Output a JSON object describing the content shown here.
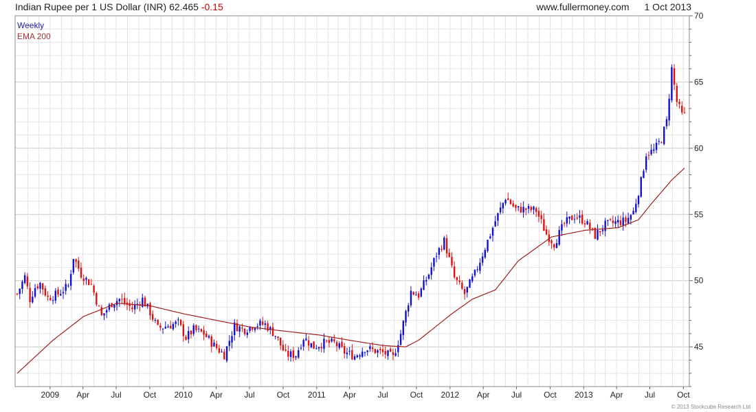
{
  "header": {
    "title": "Indian Rupee per 1 US Dollar (INR)",
    "last": "62.465",
    "change": "-0.15",
    "site": "www.fullermoney.com",
    "date": "1 Oct 2013"
  },
  "legend": {
    "weekly": "Weekly",
    "ema": "EMA 200"
  },
  "copyright": "© 2013 Stockcube Research Ltd",
  "colors": {
    "up": "#1010d0",
    "down": "#e01010",
    "ema": "#a02020",
    "grid": "#e3e3e3",
    "grid_major": "#c8c8c8",
    "frame": "#888888"
  },
  "chart_data": {
    "type": "candlestick",
    "period": "weekly",
    "y_axis_position": "right",
    "ylim": [
      42.0,
      70.0
    ],
    "y_ticks": [
      45,
      50,
      55,
      60,
      65,
      70
    ],
    "x_start": "2008-10-03",
    "x_end": "2013-10-04",
    "x_ticks": [
      {
        "label": "2009",
        "date": "2009-01-01"
      },
      {
        "label": "Apr",
        "date": "2009-04-01"
      },
      {
        "label": "Jul",
        "date": "2009-07-01"
      },
      {
        "label": "Oct",
        "date": "2009-10-01"
      },
      {
        "label": "2010",
        "date": "2010-01-01"
      },
      {
        "label": "Apr",
        "date": "2010-04-01"
      },
      {
        "label": "Jul",
        "date": "2010-07-01"
      },
      {
        "label": "Oct",
        "date": "2010-10-01"
      },
      {
        "label": "2011",
        "date": "2011-01-01"
      },
      {
        "label": "Apr",
        "date": "2011-04-01"
      },
      {
        "label": "Jul",
        "date": "2011-07-01"
      },
      {
        "label": "Oct",
        "date": "2011-10-01"
      },
      {
        "label": "2012",
        "date": "2012-01-01"
      },
      {
        "label": "Apr",
        "date": "2012-04-01"
      },
      {
        "label": "Jul",
        "date": "2012-07-01"
      },
      {
        "label": "Oct",
        "date": "2012-10-01"
      },
      {
        "label": "2013",
        "date": "2013-01-01"
      },
      {
        "label": "Apr",
        "date": "2013-04-01"
      },
      {
        "label": "Jul",
        "date": "2013-07-01"
      },
      {
        "label": "Oct",
        "date": "2013-10-01"
      }
    ],
    "weekly_close_anchors": [
      [
        "2008-10-03",
        49.0
      ],
      [
        "2008-10-24",
        50.3
      ],
      [
        "2008-11-07",
        48.6
      ],
      [
        "2008-11-21",
        49.5
      ],
      [
        "2008-12-05",
        49.8
      ],
      [
        "2008-12-26",
        48.7
      ],
      [
        "2009-01-23",
        49.0
      ],
      [
        "2009-02-20",
        49.6
      ],
      [
        "2009-03-06",
        51.8
      ],
      [
        "2009-03-27",
        50.5
      ],
      [
        "2009-04-24",
        49.7
      ],
      [
        "2009-05-22",
        47.3
      ],
      [
        "2009-06-19",
        48.3
      ],
      [
        "2009-07-10",
        48.6
      ],
      [
        "2009-08-14",
        47.9
      ],
      [
        "2009-09-11",
        48.6
      ],
      [
        "2009-10-02",
        47.6
      ],
      [
        "2009-10-23",
        46.4
      ],
      [
        "2009-11-20",
        46.6
      ],
      [
        "2009-12-18",
        46.8
      ],
      [
        "2010-01-08",
        45.7
      ],
      [
        "2010-01-29",
        46.3
      ],
      [
        "2010-02-26",
        46.0
      ],
      [
        "2010-03-26",
        45.1
      ],
      [
        "2010-04-23",
        44.4
      ],
      [
        "2010-05-21",
        46.6
      ],
      [
        "2010-06-18",
        46.3
      ],
      [
        "2010-07-16",
        46.7
      ],
      [
        "2010-08-13",
        46.7
      ],
      [
        "2010-09-10",
        45.9
      ],
      [
        "2010-10-08",
        44.4
      ],
      [
        "2010-11-05",
        44.4
      ],
      [
        "2010-11-26",
        45.7
      ],
      [
        "2010-12-24",
        45.0
      ],
      [
        "2011-01-21",
        45.3
      ],
      [
        "2011-02-18",
        45.3
      ],
      [
        "2011-03-18",
        44.6
      ],
      [
        "2011-04-15",
        44.3
      ],
      [
        "2011-05-13",
        44.9
      ],
      [
        "2011-06-10",
        44.7
      ],
      [
        "2011-07-08",
        44.5
      ],
      [
        "2011-07-29",
        44.2
      ],
      [
        "2011-08-19",
        46.0
      ],
      [
        "2011-09-16",
        49.2
      ],
      [
        "2011-10-07",
        48.9
      ],
      [
        "2011-11-04",
        50.5
      ],
      [
        "2011-11-25",
        52.0
      ],
      [
        "2011-12-16",
        53.0
      ],
      [
        "2012-01-13",
        50.2
      ],
      [
        "2012-02-10",
        49.0
      ],
      [
        "2012-03-09",
        50.5
      ],
      [
        "2012-04-06",
        52.5
      ],
      [
        "2012-05-04",
        54.5
      ],
      [
        "2012-06-01",
        56.3
      ],
      [
        "2012-06-29",
        55.4
      ],
      [
        "2012-07-27",
        55.4
      ],
      [
        "2012-08-24",
        55.3
      ],
      [
        "2012-09-21",
        53.5
      ],
      [
        "2012-10-12",
        52.8
      ],
      [
        "2012-11-09",
        54.3
      ],
      [
        "2012-12-07",
        54.9
      ],
      [
        "2013-01-04",
        54.5
      ],
      [
        "2013-02-01",
        53.4
      ],
      [
        "2013-03-01",
        54.2
      ],
      [
        "2013-03-29",
        54.4
      ],
      [
        "2013-04-26",
        54.5
      ],
      [
        "2013-05-17",
        55.2
      ],
      [
        "2013-06-07",
        57.5
      ],
      [
        "2013-06-21",
        59.6
      ],
      [
        "2013-07-12",
        59.8
      ],
      [
        "2013-08-02",
        60.7
      ],
      [
        "2013-08-16",
        62.0
      ],
      [
        "2013-08-30",
        66.0
      ],
      [
        "2013-09-13",
        63.5
      ],
      [
        "2013-09-27",
        62.5
      ],
      [
        "2013-10-04",
        62.5
      ]
    ],
    "ema_200_anchors": [
      [
        "2008-10-03",
        43.0
      ],
      [
        "2009-01-09",
        45.5
      ],
      [
        "2009-04-03",
        47.3
      ],
      [
        "2009-07-03",
        48.3
      ],
      [
        "2009-10-02",
        48.1
      ],
      [
        "2010-01-01",
        47.5
      ],
      [
        "2010-04-02",
        47.0
      ],
      [
        "2010-07-02",
        46.5
      ],
      [
        "2010-10-01",
        46.2
      ],
      [
        "2011-01-07",
        45.9
      ],
      [
        "2011-04-01",
        45.5
      ],
      [
        "2011-07-01",
        45.1
      ],
      [
        "2011-09-02",
        45.0
      ],
      [
        "2011-10-07",
        45.5
      ],
      [
        "2012-01-06",
        47.5
      ],
      [
        "2012-03-02",
        48.6
      ],
      [
        "2012-05-04",
        49.3
      ],
      [
        "2012-07-06",
        51.5
      ],
      [
        "2012-10-05",
        53.3
      ],
      [
        "2013-01-04",
        53.8
      ],
      [
        "2013-04-05",
        54.0
      ],
      [
        "2013-05-31",
        54.6
      ],
      [
        "2013-07-05",
        55.8
      ],
      [
        "2013-08-30",
        57.6
      ],
      [
        "2013-10-04",
        58.5
      ]
    ]
  }
}
